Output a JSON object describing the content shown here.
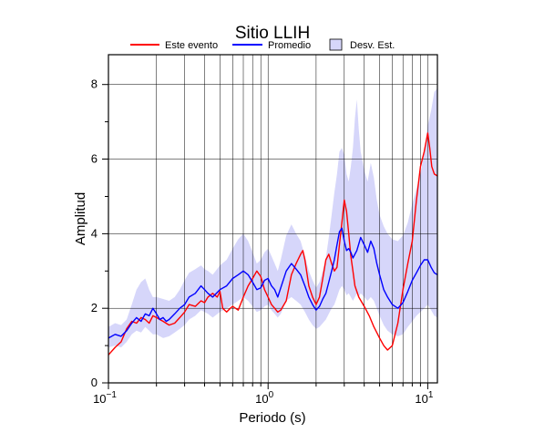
{
  "chart_data": {
    "type": "line",
    "title": "Sitio LLIH",
    "xlabel": "Periodo (s)",
    "ylabel": "Amplitud",
    "x_scale": "log",
    "xlim": [
      0.1,
      11.5
    ],
    "ylim": [
      0,
      8.8
    ],
    "grid": true,
    "legend_position": "top",
    "x_tick_labels": [
      {
        "value": 0.1,
        "base": "10",
        "exp": "−1"
      },
      {
        "value": 1,
        "base": "10",
        "exp": "0"
      },
      {
        "value": 10,
        "base": "10",
        "exp": "1"
      }
    ],
    "y_tick_labels": [
      {
        "value": 0,
        "label": "0"
      },
      {
        "value": 2,
        "label": "2"
      },
      {
        "value": 4,
        "label": "4"
      },
      {
        "value": 6,
        "label": "6"
      },
      {
        "value": 8,
        "label": "8"
      }
    ],
    "series": [
      {
        "name": "Este evento",
        "color": "#ff0000",
        "points": [
          [
            0.1,
            0.75
          ],
          [
            0.11,
            0.95
          ],
          [
            0.12,
            1.1
          ],
          [
            0.13,
            1.45
          ],
          [
            0.14,
            1.65
          ],
          [
            0.15,
            1.6
          ],
          [
            0.16,
            1.75
          ],
          [
            0.17,
            1.7
          ],
          [
            0.18,
            1.6
          ],
          [
            0.19,
            1.8
          ],
          [
            0.2,
            1.75
          ],
          [
            0.22,
            1.65
          ],
          [
            0.24,
            1.55
          ],
          [
            0.26,
            1.6
          ],
          [
            0.28,
            1.75
          ],
          [
            0.3,
            1.9
          ],
          [
            0.32,
            2.1
          ],
          [
            0.35,
            2.05
          ],
          [
            0.38,
            2.2
          ],
          [
            0.4,
            2.15
          ],
          [
            0.42,
            2.3
          ],
          [
            0.45,
            2.4
          ],
          [
            0.48,
            2.3
          ],
          [
            0.5,
            2.45
          ],
          [
            0.52,
            2.0
          ],
          [
            0.55,
            1.9
          ],
          [
            0.58,
            2.0
          ],
          [
            0.6,
            2.05
          ],
          [
            0.65,
            1.95
          ],
          [
            0.7,
            2.3
          ],
          [
            0.75,
            2.6
          ],
          [
            0.8,
            2.8
          ],
          [
            0.85,
            3.0
          ],
          [
            0.9,
            2.85
          ],
          [
            0.95,
            2.5
          ],
          [
            1.0,
            2.3
          ],
          [
            1.05,
            2.1
          ],
          [
            1.1,
            2.0
          ],
          [
            1.15,
            1.9
          ],
          [
            1.2,
            1.95
          ],
          [
            1.3,
            2.2
          ],
          [
            1.4,
            2.9
          ],
          [
            1.5,
            3.2
          ],
          [
            1.6,
            3.45
          ],
          [
            1.65,
            3.55
          ],
          [
            1.7,
            3.3
          ],
          [
            1.8,
            2.6
          ],
          [
            1.9,
            2.3
          ],
          [
            2.0,
            2.1
          ],
          [
            2.1,
            2.3
          ],
          [
            2.2,
            2.8
          ],
          [
            2.3,
            3.3
          ],
          [
            2.4,
            3.45
          ],
          [
            2.5,
            3.2
          ],
          [
            2.6,
            3.0
          ],
          [
            2.7,
            3.1
          ],
          [
            2.8,
            3.7
          ],
          [
            2.9,
            4.3
          ],
          [
            3.0,
            4.9
          ],
          [
            3.1,
            4.6
          ],
          [
            3.2,
            4.0
          ],
          [
            3.3,
            3.4
          ],
          [
            3.4,
            3.0
          ],
          [
            3.5,
            2.6
          ],
          [
            3.7,
            2.3
          ],
          [
            4.0,
            2.05
          ],
          [
            4.3,
            1.8
          ],
          [
            4.6,
            1.5
          ],
          [
            5.0,
            1.2
          ],
          [
            5.3,
            1.0
          ],
          [
            5.6,
            0.88
          ],
          [
            6.0,
            1.0
          ],
          [
            6.5,
            1.6
          ],
          [
            7.0,
            2.5
          ],
          [
            7.5,
            3.2
          ],
          [
            8.0,
            3.8
          ],
          [
            8.5,
            4.9
          ],
          [
            9.0,
            5.8
          ],
          [
            9.5,
            6.2
          ],
          [
            10.0,
            6.7
          ],
          [
            10.3,
            6.3
          ],
          [
            10.6,
            5.8
          ],
          [
            11.0,
            5.6
          ],
          [
            11.5,
            5.55
          ]
        ]
      },
      {
        "name": "Promedio",
        "color": "#0000ff",
        "points": [
          [
            0.1,
            1.2
          ],
          [
            0.11,
            1.3
          ],
          [
            0.12,
            1.25
          ],
          [
            0.13,
            1.4
          ],
          [
            0.14,
            1.6
          ],
          [
            0.15,
            1.75
          ],
          [
            0.16,
            1.65
          ],
          [
            0.17,
            1.85
          ],
          [
            0.18,
            1.8
          ],
          [
            0.19,
            2.0
          ],
          [
            0.2,
            1.85
          ],
          [
            0.21,
            1.7
          ],
          [
            0.22,
            1.75
          ],
          [
            0.23,
            1.65
          ],
          [
            0.24,
            1.7
          ],
          [
            0.26,
            1.85
          ],
          [
            0.28,
            2.0
          ],
          [
            0.3,
            2.1
          ],
          [
            0.32,
            2.3
          ],
          [
            0.35,
            2.4
          ],
          [
            0.38,
            2.6
          ],
          [
            0.4,
            2.5
          ],
          [
            0.42,
            2.4
          ],
          [
            0.45,
            2.3
          ],
          [
            0.5,
            2.5
          ],
          [
            0.55,
            2.6
          ],
          [
            0.6,
            2.8
          ],
          [
            0.65,
            2.9
          ],
          [
            0.7,
            3.0
          ],
          [
            0.75,
            2.9
          ],
          [
            0.8,
            2.7
          ],
          [
            0.85,
            2.5
          ],
          [
            0.9,
            2.55
          ],
          [
            0.95,
            2.75
          ],
          [
            1.0,
            2.8
          ],
          [
            1.05,
            2.6
          ],
          [
            1.1,
            2.5
          ],
          [
            1.15,
            2.3
          ],
          [
            1.2,
            2.55
          ],
          [
            1.3,
            3.0
          ],
          [
            1.4,
            3.2
          ],
          [
            1.5,
            3.05
          ],
          [
            1.6,
            2.9
          ],
          [
            1.7,
            2.6
          ],
          [
            1.8,
            2.3
          ],
          [
            1.9,
            2.1
          ],
          [
            2.0,
            1.95
          ],
          [
            2.1,
            2.05
          ],
          [
            2.2,
            2.25
          ],
          [
            2.3,
            2.4
          ],
          [
            2.4,
            2.7
          ],
          [
            2.5,
            3.0
          ],
          [
            2.6,
            3.3
          ],
          [
            2.7,
            3.7
          ],
          [
            2.8,
            4.05
          ],
          [
            2.9,
            4.15
          ],
          [
            3.0,
            3.8
          ],
          [
            3.1,
            3.55
          ],
          [
            3.2,
            3.6
          ],
          [
            3.3,
            3.5
          ],
          [
            3.4,
            3.35
          ],
          [
            3.6,
            3.55
          ],
          [
            3.8,
            3.9
          ],
          [
            4.0,
            3.7
          ],
          [
            4.2,
            3.5
          ],
          [
            4.4,
            3.8
          ],
          [
            4.6,
            3.6
          ],
          [
            4.8,
            3.2
          ],
          [
            5.0,
            2.9
          ],
          [
            5.3,
            2.5
          ],
          [
            5.6,
            2.3
          ],
          [
            6.0,
            2.1
          ],
          [
            6.5,
            2.0
          ],
          [
            7.0,
            2.15
          ],
          [
            7.5,
            2.45
          ],
          [
            8.0,
            2.75
          ],
          [
            8.5,
            2.95
          ],
          [
            9.0,
            3.15
          ],
          [
            9.5,
            3.3
          ],
          [
            10.0,
            3.3
          ],
          [
            10.5,
            3.1
          ],
          [
            11.0,
            2.95
          ],
          [
            11.5,
            2.9
          ]
        ]
      }
    ],
    "band": {
      "name": "Desv. Est.",
      "color": "#d6d6fa",
      "points": [
        [
          0.1,
          0.95,
          1.5
        ],
        [
          0.11,
          1.0,
          1.6
        ],
        [
          0.12,
          0.95,
          1.55
        ],
        [
          0.13,
          1.1,
          1.7
        ],
        [
          0.14,
          1.3,
          2.1
        ],
        [
          0.15,
          1.4,
          2.5
        ],
        [
          0.16,
          1.35,
          2.7
        ],
        [
          0.17,
          1.5,
          2.8
        ],
        [
          0.18,
          1.4,
          2.5
        ],
        [
          0.19,
          1.3,
          2.3
        ],
        [
          0.2,
          1.3,
          2.3
        ],
        [
          0.22,
          1.2,
          2.25
        ],
        [
          0.24,
          1.25,
          2.2
        ],
        [
          0.26,
          1.35,
          2.3
        ],
        [
          0.28,
          1.45,
          2.5
        ],
        [
          0.3,
          1.55,
          2.75
        ],
        [
          0.32,
          1.7,
          2.95
        ],
        [
          0.35,
          1.8,
          3.05
        ],
        [
          0.38,
          1.95,
          3.15
        ],
        [
          0.4,
          1.9,
          3.05
        ],
        [
          0.42,
          1.85,
          3.0
        ],
        [
          0.45,
          1.75,
          2.9
        ],
        [
          0.5,
          1.9,
          3.15
        ],
        [
          0.55,
          2.0,
          3.3
        ],
        [
          0.6,
          2.1,
          3.6
        ],
        [
          0.65,
          2.2,
          3.85
        ],
        [
          0.7,
          2.3,
          4.0
        ],
        [
          0.75,
          2.2,
          3.8
        ],
        [
          0.8,
          2.05,
          3.5
        ],
        [
          0.85,
          1.9,
          3.2
        ],
        [
          0.9,
          1.95,
          3.3
        ],
        [
          0.95,
          2.05,
          3.5
        ],
        [
          1.0,
          2.1,
          3.6
        ],
        [
          1.05,
          1.95,
          3.4
        ],
        [
          1.1,
          1.85,
          3.2
        ],
        [
          1.15,
          1.75,
          3.0
        ],
        [
          1.2,
          1.85,
          3.3
        ],
        [
          1.3,
          2.2,
          3.95
        ],
        [
          1.4,
          2.3,
          4.25
        ],
        [
          1.5,
          2.2,
          4.0
        ],
        [
          1.6,
          2.1,
          3.8
        ],
        [
          1.7,
          1.9,
          3.4
        ],
        [
          1.8,
          1.7,
          3.0
        ],
        [
          1.9,
          1.55,
          2.75
        ],
        [
          2.0,
          1.45,
          2.55
        ],
        [
          2.1,
          1.5,
          2.7
        ],
        [
          2.2,
          1.6,
          3.0
        ],
        [
          2.3,
          1.7,
          3.35
        ],
        [
          2.4,
          1.85,
          3.9
        ],
        [
          2.5,
          2.0,
          4.5
        ],
        [
          2.6,
          2.1,
          5.1
        ],
        [
          2.7,
          2.3,
          5.6
        ],
        [
          2.8,
          2.5,
          6.2
        ],
        [
          2.9,
          2.6,
          6.3
        ],
        [
          3.0,
          2.5,
          6.1
        ],
        [
          3.1,
          2.35,
          5.6
        ],
        [
          3.2,
          2.4,
          5.4
        ],
        [
          3.3,
          2.3,
          5.8
        ],
        [
          3.4,
          2.2,
          6.3
        ],
        [
          3.5,
          2.3,
          7.1
        ],
        [
          3.6,
          2.4,
          7.6
        ],
        [
          3.7,
          2.3,
          6.8
        ],
        [
          3.8,
          2.4,
          6.2
        ],
        [
          4.0,
          2.3,
          5.7
        ],
        [
          4.2,
          2.2,
          5.4
        ],
        [
          4.4,
          2.3,
          5.9
        ],
        [
          4.6,
          2.2,
          5.5
        ],
        [
          4.8,
          2.0,
          4.9
        ],
        [
          5.0,
          1.8,
          4.5
        ],
        [
          5.3,
          1.55,
          4.2
        ],
        [
          5.6,
          1.4,
          4.0
        ],
        [
          6.0,
          1.3,
          3.85
        ],
        [
          6.5,
          1.25,
          3.8
        ],
        [
          7.0,
          1.3,
          3.95
        ],
        [
          7.5,
          1.5,
          4.3
        ],
        [
          8.0,
          1.65,
          4.8
        ],
        [
          8.5,
          1.8,
          5.2
        ],
        [
          9.0,
          1.9,
          5.6
        ],
        [
          9.5,
          2.0,
          6.2
        ],
        [
          10.0,
          2.1,
          6.9
        ],
        [
          10.5,
          1.95,
          7.3
        ],
        [
          11.0,
          1.8,
          7.8
        ],
        [
          11.5,
          1.75,
          7.9
        ]
      ]
    }
  }
}
